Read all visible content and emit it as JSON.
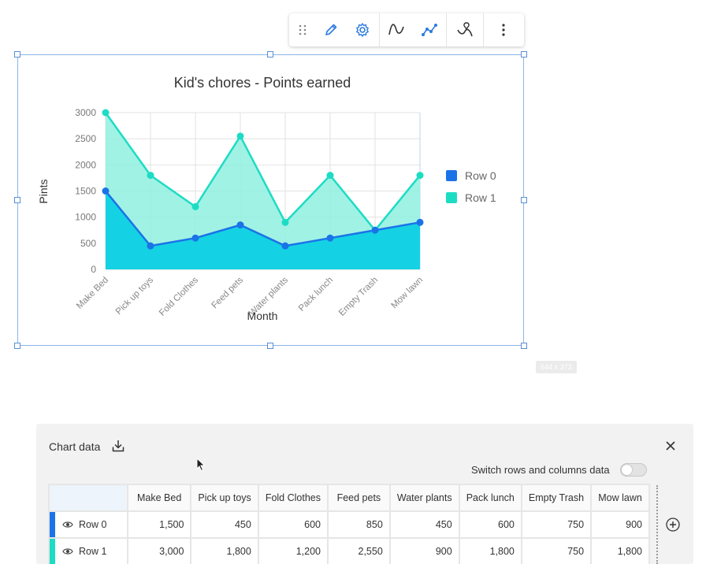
{
  "colors": {
    "row0": "#1b73e8",
    "row1": "#1ddcc4",
    "row1_fill": "#8ff0df",
    "row0_fill": "#14d2e3",
    "selection": "#5a8fd6"
  },
  "toolbar": {
    "icons": [
      "drag-handle-icon",
      "pencil-icon",
      "gear-icon",
      "curve-icon",
      "line-points-icon",
      "map-pin-curve-icon",
      "more-vertical-icon"
    ]
  },
  "size_badge": "644 x 372",
  "chart_data": {
    "type": "area",
    "title": "Kid's chores - Points earned",
    "xlabel": "Month",
    "ylabel": "Pints",
    "categories": [
      "Make Bed",
      "Pick up toys",
      "Fold Clothes",
      "Feed pets",
      "Water plants",
      "Pack lunch",
      "Empty Trash",
      "Mow lawn"
    ],
    "series": [
      {
        "name": "Row 0",
        "values": [
          1500,
          450,
          600,
          850,
          450,
          600,
          750,
          900
        ]
      },
      {
        "name": "Row 1",
        "values": [
          3000,
          1800,
          1200,
          2550,
          900,
          1800,
          750,
          1800
        ]
      }
    ],
    "ylim": [
      0,
      3000
    ],
    "yticks": [
      "0",
      "500",
      "1000",
      "1500",
      "2000",
      "2500",
      "3000"
    ],
    "grid": true,
    "legend": "right"
  },
  "panel": {
    "title": "Chart data",
    "switch_label": "Switch rows and columns data",
    "columns": [
      "Make Bed",
      "Pick up toys",
      "Fold Clothes",
      "Feed pets",
      "Water plants",
      "Pack lunch",
      "Empty Trash",
      "Mow lawn"
    ],
    "rows": [
      {
        "label": "Row 0",
        "values": [
          "1,500",
          "450",
          "600",
          "850",
          "450",
          "600",
          "750",
          "900"
        ]
      },
      {
        "label": "Row 1",
        "values": [
          "3,000",
          "1,800",
          "1,200",
          "2,550",
          "900",
          "1,800",
          "750",
          "1,800"
        ]
      }
    ]
  }
}
